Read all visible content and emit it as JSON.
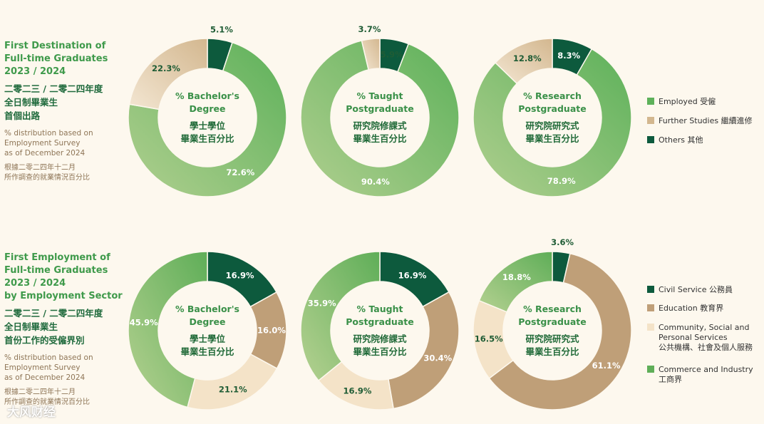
{
  "colors": {
    "employed_light": "#b0cf8f",
    "employed_dark": "#5db15a",
    "further_light": "#f3e6d2",
    "further_dark": "#d3b78f",
    "others": "#0d5a3d",
    "civil_service": "#0d5a3d",
    "education": "#bf9f78",
    "community": "#f4e3c8",
    "commerce_light": "#b5d191",
    "commerce_dark": "#5fae58",
    "center_text": "#3a9048",
    "center_text_zh": "#206a38"
  },
  "section1": {
    "title_en": "First Destination of\nFull-time Graduates\n2023 / 2024",
    "title_zh": "二零二三 / 二零二四年度\n全日制畢業生\n首個出路",
    "note_en": "% distribution based on\nEmployment Survey\nas of December 2024",
    "note_zh": "根據二零二四年十二月\n所作調查的就業情況百分比"
  },
  "section2": {
    "title_en": "First Employment of\nFull-time Graduates\n2023 / 2024\nby Employment Sector",
    "title_zh": "二零二三 / 二零二四年度\n全日制畢業生\n首份工作的受僱界別",
    "note_en": "% distribution based on\nEmployment Survey\nas of December 2024",
    "note_zh": "根據二零二四年十二月\n所作調查的就業情況百分比"
  },
  "legend1": [
    {
      "label": "Employed 受僱",
      "color_key": "employed_dark"
    },
    {
      "label": "Further Studies 繼續進修",
      "color_key": "further_dark"
    },
    {
      "label": "Others 其他",
      "color_key": "others"
    }
  ],
  "legend2": [
    {
      "label": "Civil Service 公務員",
      "color_key": "civil_service"
    },
    {
      "label": "Education 教育界",
      "color_key": "education"
    },
    {
      "label": "Community, Social and\nPersonal Services\n公共機構、社會及個人服務",
      "color_key": "community"
    },
    {
      "label": "Commerce and Industry\n工商界",
      "color_key": "commerce_dark"
    }
  ],
  "watermark": "大风财经",
  "chart_data": [
    {
      "type": "pie",
      "variant": "donut",
      "group": "First Destination",
      "center_en": "% Bachelor's\nDegree",
      "center_zh": "學士學位\n畢業生百分比",
      "series": [
        {
          "name": "Employed 受僱",
          "value": 72.6,
          "label": "72.6%"
        },
        {
          "name": "Further Studies 繼續進修",
          "value": 22.3,
          "label": "22.3%"
        },
        {
          "name": "Others 其他",
          "value": 5.1,
          "label": "5.1%"
        }
      ]
    },
    {
      "type": "pie",
      "variant": "donut",
      "group": "First Destination",
      "center_en": "% Taught\nPostgraduate",
      "center_zh": "研究院修課式\n畢業生百分比",
      "series": [
        {
          "name": "Employed 受僱",
          "value": 90.4,
          "label": "90.4%"
        },
        {
          "name": "Further Studies 繼續進修",
          "value": 3.7,
          "label": "3.7%"
        },
        {
          "name": "Others 其他",
          "value": 5.9,
          "label": "5.9%"
        }
      ]
    },
    {
      "type": "pie",
      "variant": "donut",
      "group": "First Destination",
      "center_en": "% Research\nPostgraduate",
      "center_zh": "研究院研究式\n畢業生百分比",
      "series": [
        {
          "name": "Employed 受僱",
          "value": 78.9,
          "label": "78.9%"
        },
        {
          "name": "Further Studies 繼續進修",
          "value": 12.8,
          "label": "12.8%"
        },
        {
          "name": "Others 其他",
          "value": 8.3,
          "label": "8.3%"
        }
      ]
    },
    {
      "type": "pie",
      "variant": "donut",
      "group": "First Employment by Sector",
      "center_en": "% Bachelor's\nDegree",
      "center_zh": "學士學位\n畢業生百分比",
      "series": [
        {
          "name": "Civil Service 公務員",
          "value": 16.9,
          "label": "16.9%"
        },
        {
          "name": "Education 教育界",
          "value": 16.0,
          "label": "16.0%"
        },
        {
          "name": "Community, Social and Personal Services",
          "value": 21.1,
          "label": "21.1%"
        },
        {
          "name": "Commerce and Industry 工商界",
          "value": 45.9,
          "label": "45.9%"
        }
      ]
    },
    {
      "type": "pie",
      "variant": "donut",
      "group": "First Employment by Sector",
      "center_en": "% Taught\nPostgraduate",
      "center_zh": "研究院修課式\n畢業生百分比",
      "series": [
        {
          "name": "Civil Service 公務員",
          "value": 16.9,
          "label": "16.9%"
        },
        {
          "name": "Education 教育界",
          "value": 30.4,
          "label": "30.4%"
        },
        {
          "name": "Community, Social and Personal Services",
          "value": 16.9,
          "label": "16.9%"
        },
        {
          "name": "Commerce and Industry 工商界",
          "value": 35.9,
          "label": "35.9%"
        }
      ]
    },
    {
      "type": "pie",
      "variant": "donut",
      "group": "First Employment by Sector",
      "center_en": "% Research\nPostgraduate",
      "center_zh": "研究院研究式\n畢業生百分比",
      "series": [
        {
          "name": "Civil Service 公務員",
          "value": 3.6,
          "label": "3.6%"
        },
        {
          "name": "Education 教育界",
          "value": 61.1,
          "label": "61.1%"
        },
        {
          "name": "Community, Social and Personal Services",
          "value": 16.5,
          "label": "16.5%"
        },
        {
          "name": "Commerce and Industry 工商界",
          "value": 18.8,
          "label": "18.8%"
        }
      ]
    }
  ]
}
